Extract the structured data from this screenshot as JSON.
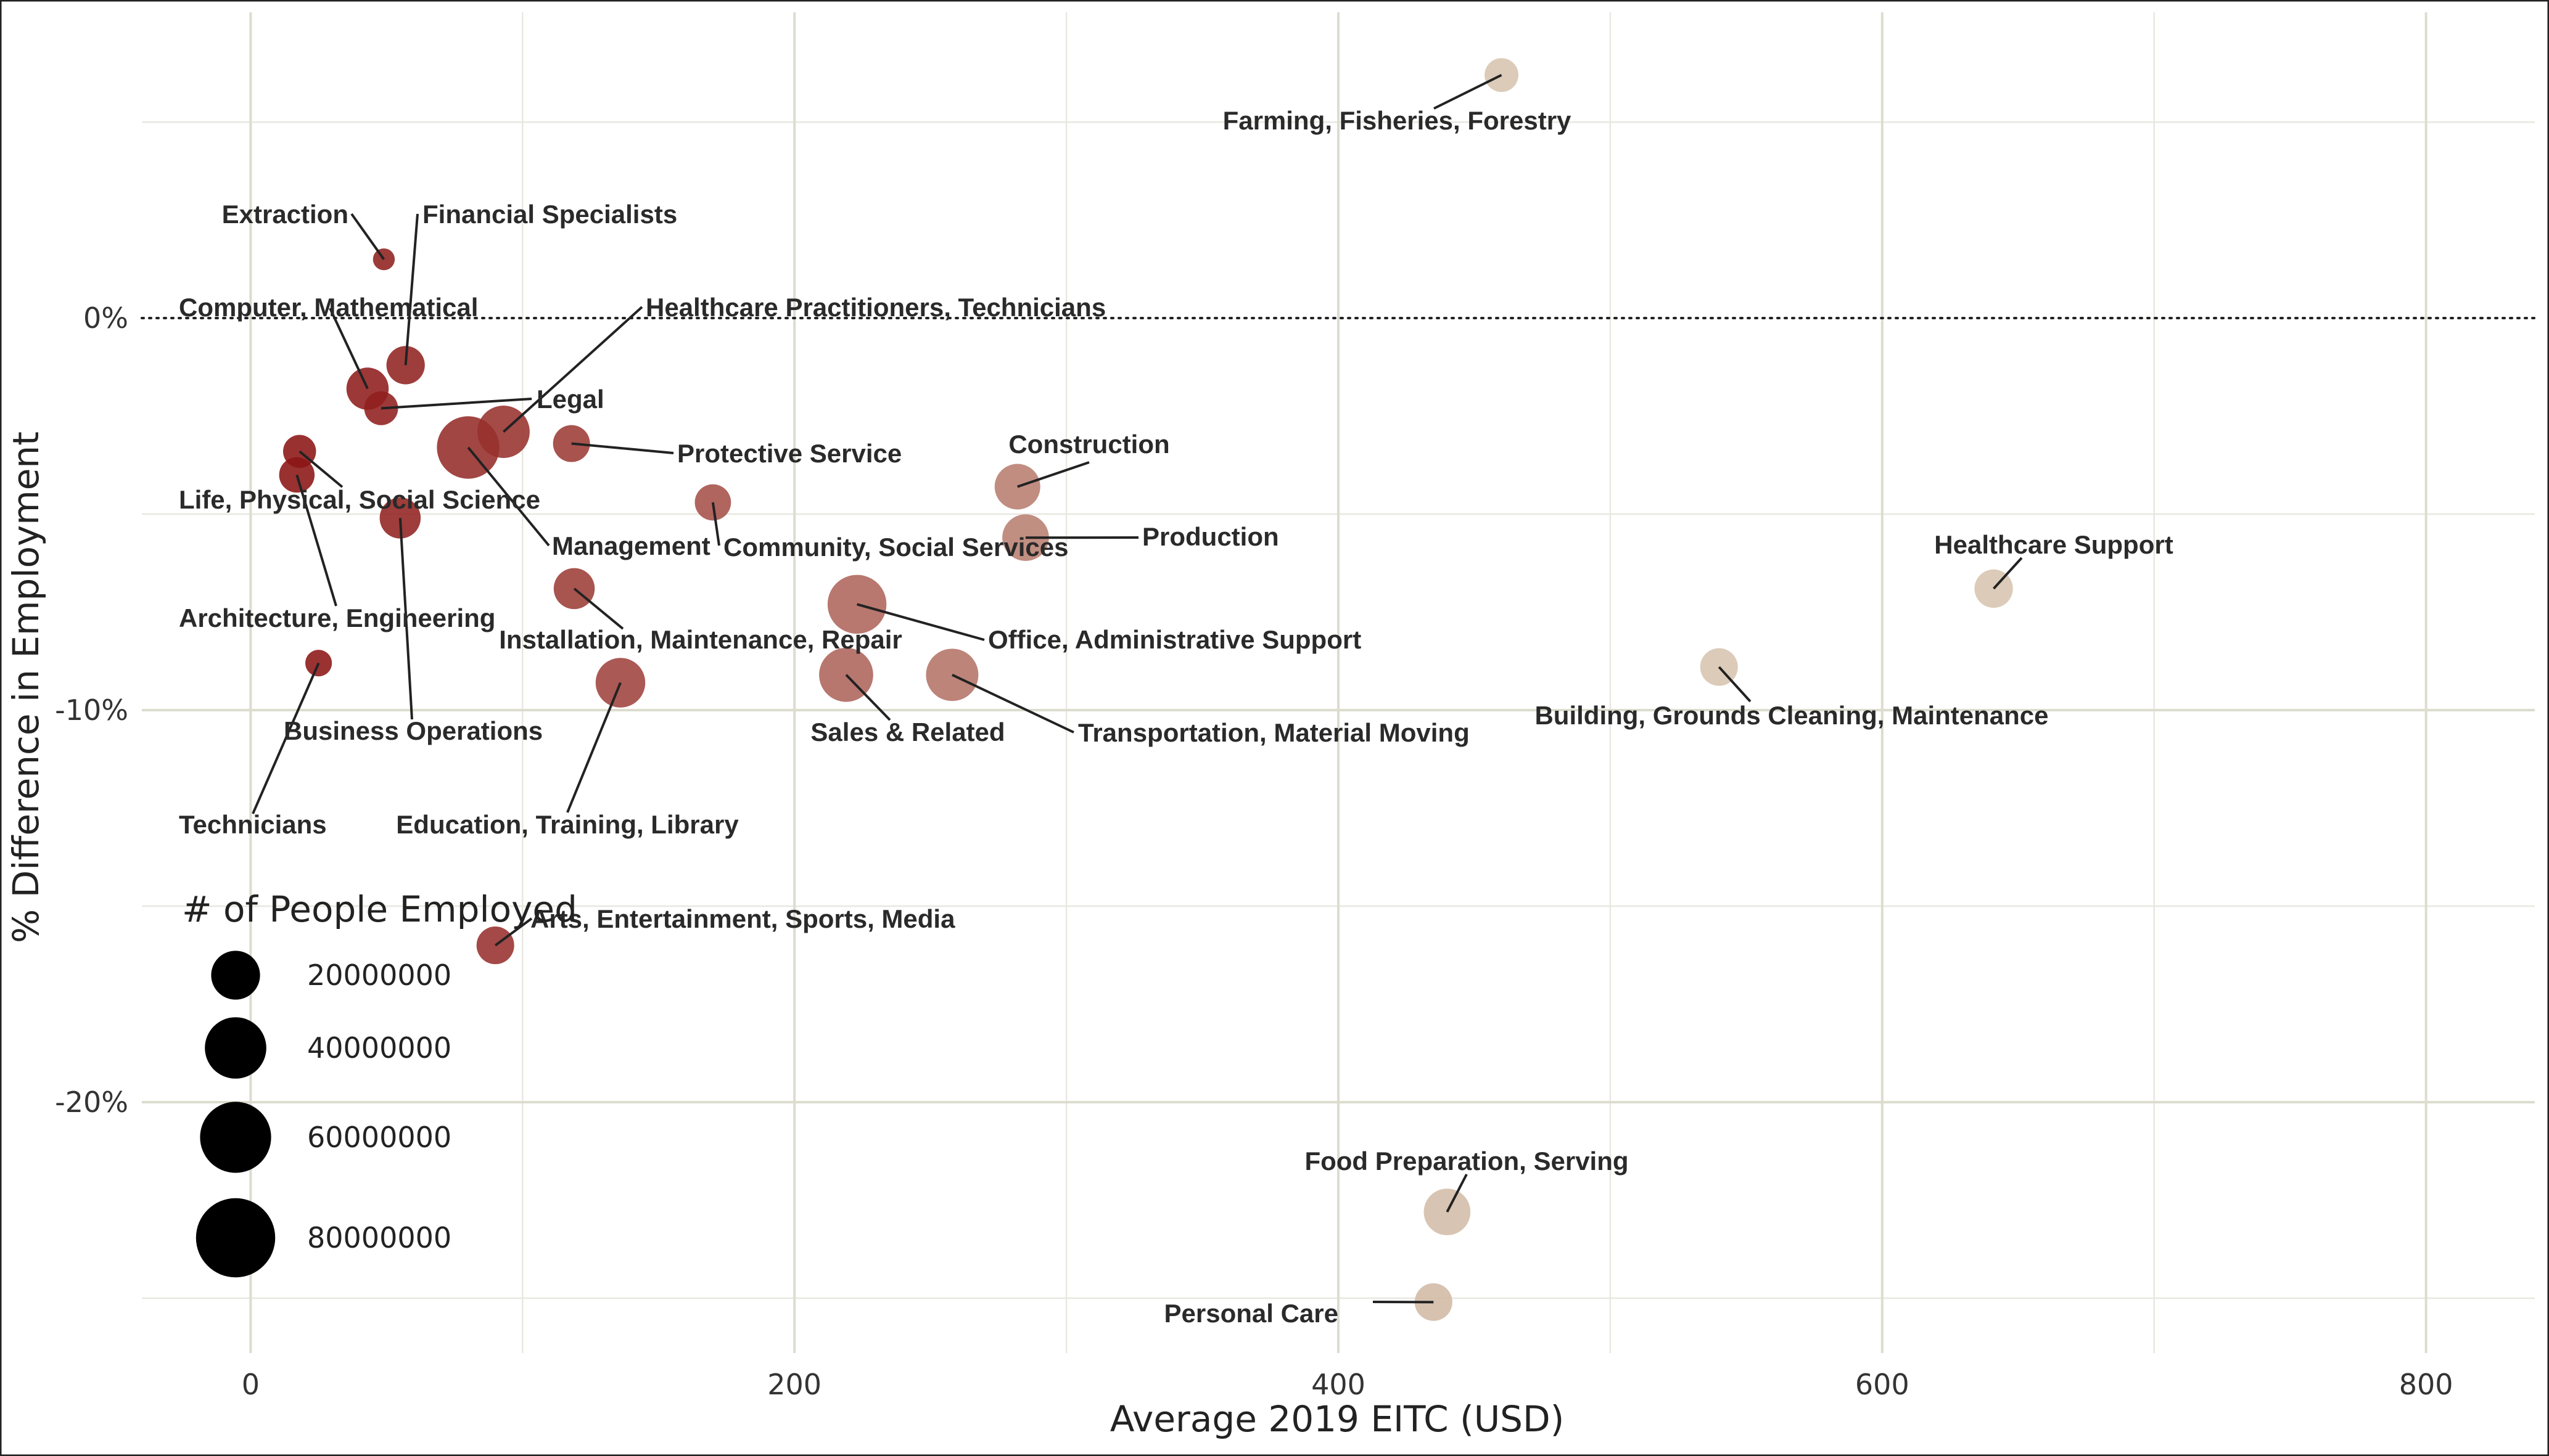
{
  "chart_data": {
    "type": "scatter",
    "xlabel": "Average 2019 EITC (USD)",
    "ylabel": "% Difference in Employment",
    "xlim": [
      -40,
      840
    ],
    "ylim": [
      -26.4,
      7.8
    ],
    "x_ticks": [
      0,
      200,
      400,
      600,
      800
    ],
    "x_tick_labels": [
      "0",
      "200",
      "400",
      "600",
      "800"
    ],
    "y_ticks": [
      0,
      -10,
      -20
    ],
    "y_tick_labels": [
      "0%",
      "-10%",
      "-20%"
    ],
    "x_minor_ticks": [
      100,
      300,
      500,
      700
    ],
    "y_minor_ticks": [
      5,
      -5,
      -15,
      -25
    ],
    "reference_line": {
      "y": 0,
      "style": "dotted"
    },
    "grid": true,
    "color_low_eitc": "#8b1414",
    "color_high_eitc": "#d6c4ae",
    "legend": {
      "title": "# of People Employed",
      "placement": "left",
      "entries": [
        {
          "label": "20000000",
          "value": 20000000
        },
        {
          "label": "40000000",
          "value": 40000000
        },
        {
          "label": "60000000",
          "value": 60000000
        },
        {
          "label": "80000000",
          "value": 80000000
        }
      ]
    },
    "points": [
      {
        "label": "Farming, Fisheries, Forestry",
        "x": 460,
        "y": 6.2,
        "size": 6000000
      },
      {
        "label": "Extraction",
        "x": 49,
        "y": 1.5,
        "size": 1000000
      },
      {
        "label": "Financial Specialists",
        "x": 57,
        "y": -1.2,
        "size": 9000000
      },
      {
        "label": "Computer, Mathematical",
        "x": 43,
        "y": -1.8,
        "size": 12000000
      },
      {
        "label": "Healthcare Practitioners, Technicians",
        "x": 93,
        "y": -2.9,
        "size": 22000000
      },
      {
        "label": "Legal",
        "x": 48,
        "y": -2.3,
        "size": 6000000
      },
      {
        "label": "Protective Service",
        "x": 118,
        "y": -3.2,
        "size": 8000000
      },
      {
        "label": "Life, Physical, Social Science",
        "x": 18,
        "y": -3.4,
        "size": 5500000
      },
      {
        "label": "Architecture, Engineering",
        "x": 17,
        "y": -4.0,
        "size": 7000000
      },
      {
        "label": "Management",
        "x": 80,
        "y": -3.3,
        "size": 35000000
      },
      {
        "label": "Business Operations",
        "x": 55,
        "y": -5.1,
        "size": 11000000
      },
      {
        "label": "Community, Social Services",
        "x": 170,
        "y": -4.7,
        "size": 7500000
      },
      {
        "label": "Construction",
        "x": 282,
        "y": -4.3,
        "size": 15000000
      },
      {
        "label": "Production",
        "x": 285,
        "y": -5.6,
        "size": 16000000
      },
      {
        "label": "Installation, Maintenance, Repair",
        "x": 119,
        "y": -6.9,
        "size": 11000000
      },
      {
        "label": "Office, Administrative Support",
        "x": 223,
        "y": -7.3,
        "size": 30000000
      },
      {
        "label": "Sales & Related",
        "x": 219,
        "y": -9.1,
        "size": 24000000
      },
      {
        "label": "Transportation, Material Moving",
        "x": 258,
        "y": -9.1,
        "size": 22000000
      },
      {
        "label": "Healthcare Support",
        "x": 641,
        "y": -6.9,
        "size": 9000000
      },
      {
        "label": "Building, Grounds Cleaning, Maintenance",
        "x": 540,
        "y": -8.9,
        "size": 8500000
      },
      {
        "label": "Technicians",
        "x": 25,
        "y": -8.8,
        "size": 2500000
      },
      {
        "label": "Education, Training, Library",
        "x": 136,
        "y": -9.3,
        "size": 19000000
      },
      {
        "label": "Arts, Entertainment, Sports, Media",
        "x": 90,
        "y": -16.0,
        "size": 8500000
      },
      {
        "label": "Food Preparation, Serving",
        "x": 440,
        "y": -22.8,
        "size": 16000000
      },
      {
        "label": "Personal Care",
        "x": 435,
        "y": -25.1,
        "size": 8500000
      }
    ]
  }
}
